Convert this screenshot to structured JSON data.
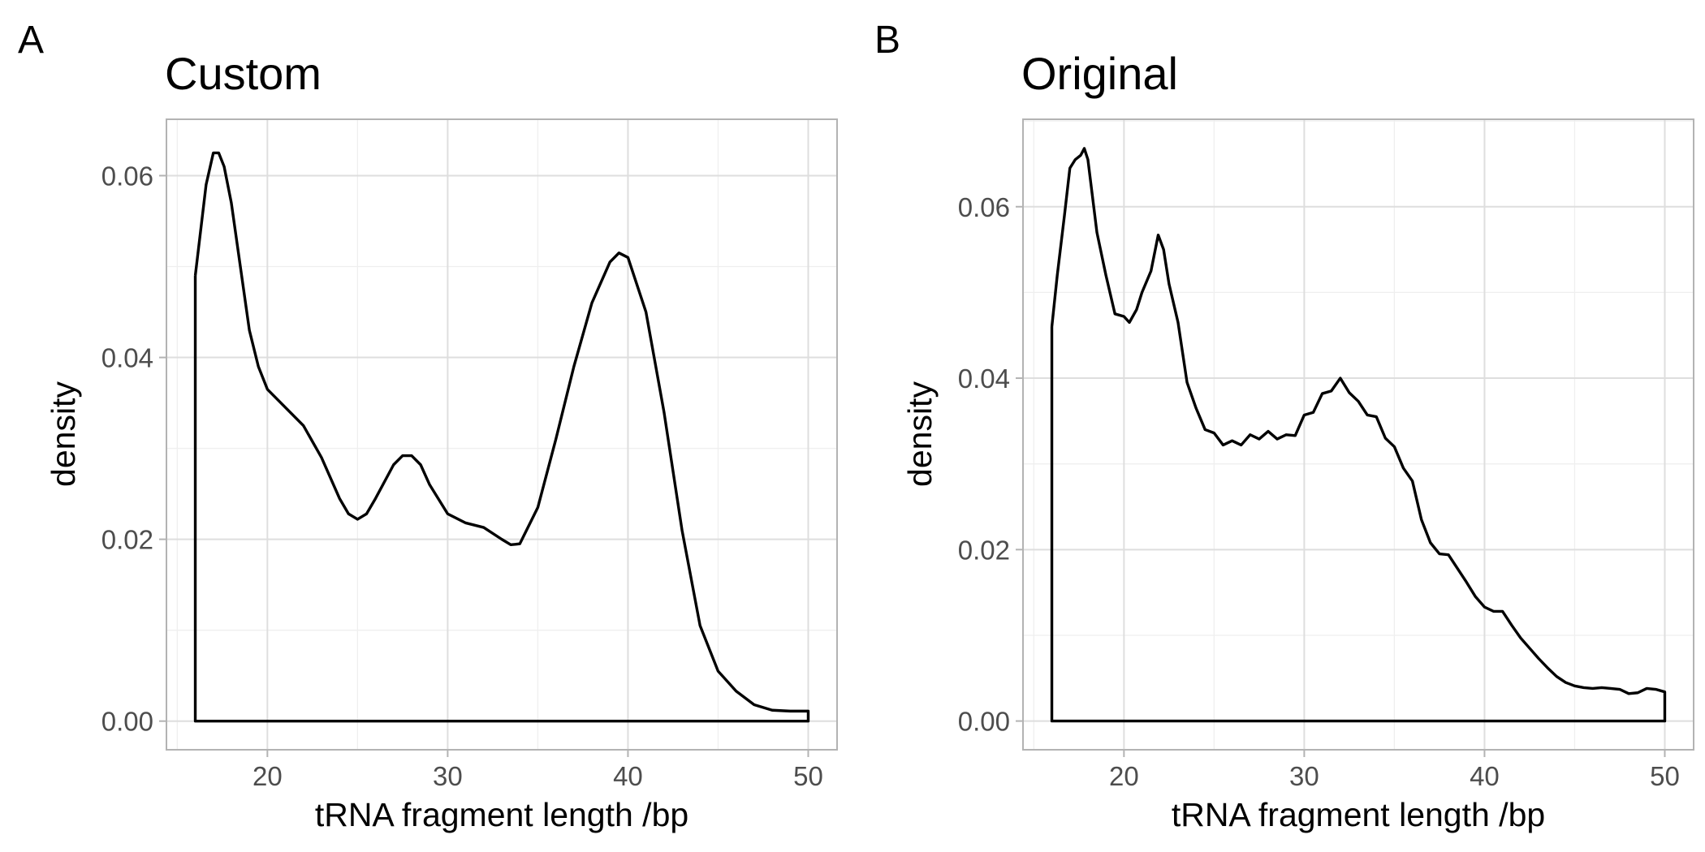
{
  "chart_data": [
    {
      "tag": "A",
      "type": "area",
      "title": "Custom",
      "xlabel": "tRNA fragment length /bp",
      "ylabel": "density",
      "xlim": [
        14.4,
        51.6
      ],
      "ylim": [
        -0.00315,
        0.0662
      ],
      "x_ticks": [
        20,
        30,
        40,
        50
      ],
      "x_tick_labels": [
        "20",
        "30",
        "40",
        "50"
      ],
      "y_ticks": [
        0,
        0.02,
        0.04,
        0.06
      ],
      "y_tick_labels": [
        "0.00",
        "0.02",
        "0.04",
        "0.06"
      ],
      "grid": true,
      "series": [
        {
          "name": "density",
          "points": [
            [
              16,
              0.049
            ],
            [
              16.3,
              0.054
            ],
            [
              16.6,
              0.059
            ],
            [
              17.0,
              0.0625
            ],
            [
              17.3,
              0.0625
            ],
            [
              17.6,
              0.061
            ],
            [
              18.0,
              0.057
            ],
            [
              18.5,
              0.05
            ],
            [
              19.0,
              0.043
            ],
            [
              19.5,
              0.039
            ],
            [
              20.0,
              0.0365
            ],
            [
              21.0,
              0.0345
            ],
            [
              22.0,
              0.0325
            ],
            [
              23.0,
              0.029
            ],
            [
              24.0,
              0.0245
            ],
            [
              24.5,
              0.0228
            ],
            [
              25.0,
              0.0222
            ],
            [
              25.5,
              0.0228
            ],
            [
              26.0,
              0.0245
            ],
            [
              27.0,
              0.0282
            ],
            [
              27.5,
              0.0292
            ],
            [
              28.0,
              0.0292
            ],
            [
              28.5,
              0.0282
            ],
            [
              29.0,
              0.026
            ],
            [
              30.0,
              0.0228
            ],
            [
              31.0,
              0.0218
            ],
            [
              32.0,
              0.0213
            ],
            [
              33.0,
              0.02
            ],
            [
              33.5,
              0.0194
            ],
            [
              34.0,
              0.0195
            ],
            [
              35.0,
              0.0235
            ],
            [
              36.0,
              0.031
            ],
            [
              37.0,
              0.039
            ],
            [
              38.0,
              0.046
            ],
            [
              39.0,
              0.0505
            ],
            [
              39.5,
              0.0515
            ],
            [
              40.0,
              0.051
            ],
            [
              41.0,
              0.045
            ],
            [
              42.0,
              0.034
            ],
            [
              43.0,
              0.021
            ],
            [
              44.0,
              0.0105
            ],
            [
              45.0,
              0.0055
            ],
            [
              46.0,
              0.0033
            ],
            [
              47.0,
              0.0018
            ],
            [
              48.0,
              0.0012
            ],
            [
              49.0,
              0.0011
            ],
            [
              50.0,
              0.0011
            ],
            [
              50.0,
              0
            ],
            [
              16,
              0
            ],
            [
              16,
              0.049
            ]
          ]
        }
      ]
    },
    {
      "tag": "B",
      "type": "area",
      "title": "Original",
      "xlabel": "tRNA fragment length /bp",
      "ylabel": "density",
      "xlim": [
        14.4,
        51.6
      ],
      "ylim": [
        -0.00335,
        0.0702
      ],
      "x_ticks": [
        20,
        30,
        40,
        50
      ],
      "x_tick_labels": [
        "20",
        "30",
        "40",
        "50"
      ],
      "y_ticks": [
        0,
        0.02,
        0.04,
        0.06
      ],
      "y_tick_labels": [
        "0.00",
        "0.02",
        "0.04",
        "0.06"
      ],
      "grid": true,
      "series": [
        {
          "name": "density",
          "points": [
            [
              16,
              0.046
            ],
            [
              16.3,
              0.052
            ],
            [
              16.7,
              0.059
            ],
            [
              17.0,
              0.0645
            ],
            [
              17.3,
              0.0655
            ],
            [
              17.6,
              0.066
            ],
            [
              17.8,
              0.0668
            ],
            [
              18.0,
              0.0655
            ],
            [
              18.5,
              0.057
            ],
            [
              19.0,
              0.052
            ],
            [
              19.5,
              0.0475
            ],
            [
              20.0,
              0.0472
            ],
            [
              20.3,
              0.0465
            ],
            [
              20.7,
              0.048
            ],
            [
              21.0,
              0.05
            ],
            [
              21.5,
              0.0525
            ],
            [
              21.9,
              0.0567
            ],
            [
              22.2,
              0.055
            ],
            [
              22.5,
              0.051
            ],
            [
              23.0,
              0.0465
            ],
            [
              23.5,
              0.0395
            ],
            [
              24.0,
              0.0365
            ],
            [
              24.5,
              0.034
            ],
            [
              25.0,
              0.0336
            ],
            [
              25.5,
              0.0322
            ],
            [
              26.0,
              0.0327
            ],
            [
              26.5,
              0.0322
            ],
            [
              27.0,
              0.0334
            ],
            [
              27.5,
              0.0329
            ],
            [
              28.0,
              0.0338
            ],
            [
              28.5,
              0.0329
            ],
            [
              29.0,
              0.0334
            ],
            [
              29.5,
              0.0333
            ],
            [
              30.0,
              0.0357
            ],
            [
              30.5,
              0.036
            ],
            [
              31.0,
              0.0382
            ],
            [
              31.5,
              0.0385
            ],
            [
              32.0,
              0.04
            ],
            [
              32.5,
              0.0383
            ],
            [
              33.0,
              0.0373
            ],
            [
              33.5,
              0.0357
            ],
            [
              34.0,
              0.0355
            ],
            [
              34.5,
              0.033
            ],
            [
              35.0,
              0.032
            ],
            [
              35.5,
              0.0295
            ],
            [
              36.0,
              0.028
            ],
            [
              36.5,
              0.0235
            ],
            [
              37.0,
              0.0208
            ],
            [
              37.5,
              0.0195
            ],
            [
              38.0,
              0.0194
            ],
            [
              38.5,
              0.0178
            ],
            [
              39.0,
              0.0162
            ],
            [
              39.5,
              0.0145
            ],
            [
              40.0,
              0.0133
            ],
            [
              40.5,
              0.0128
            ],
            [
              41.0,
              0.0128
            ],
            [
              41.5,
              0.0112
            ],
            [
              42.0,
              0.0097
            ],
            [
              42.5,
              0.0085
            ],
            [
              43.0,
              0.0073
            ],
            [
              43.5,
              0.0062
            ],
            [
              44.0,
              0.0052
            ],
            [
              44.5,
              0.0045
            ],
            [
              45.0,
              0.0041
            ],
            [
              45.5,
              0.0039
            ],
            [
              46.0,
              0.0038
            ],
            [
              46.5,
              0.0039
            ],
            [
              47.0,
              0.0038
            ],
            [
              47.5,
              0.0037
            ],
            [
              48.0,
              0.0032
            ],
            [
              48.5,
              0.0033
            ],
            [
              49.0,
              0.0038
            ],
            [
              49.5,
              0.0037
            ],
            [
              50.0,
              0.0034
            ],
            [
              50.0,
              0
            ],
            [
              16,
              0
            ],
            [
              16,
              0.046
            ]
          ]
        }
      ]
    }
  ]
}
